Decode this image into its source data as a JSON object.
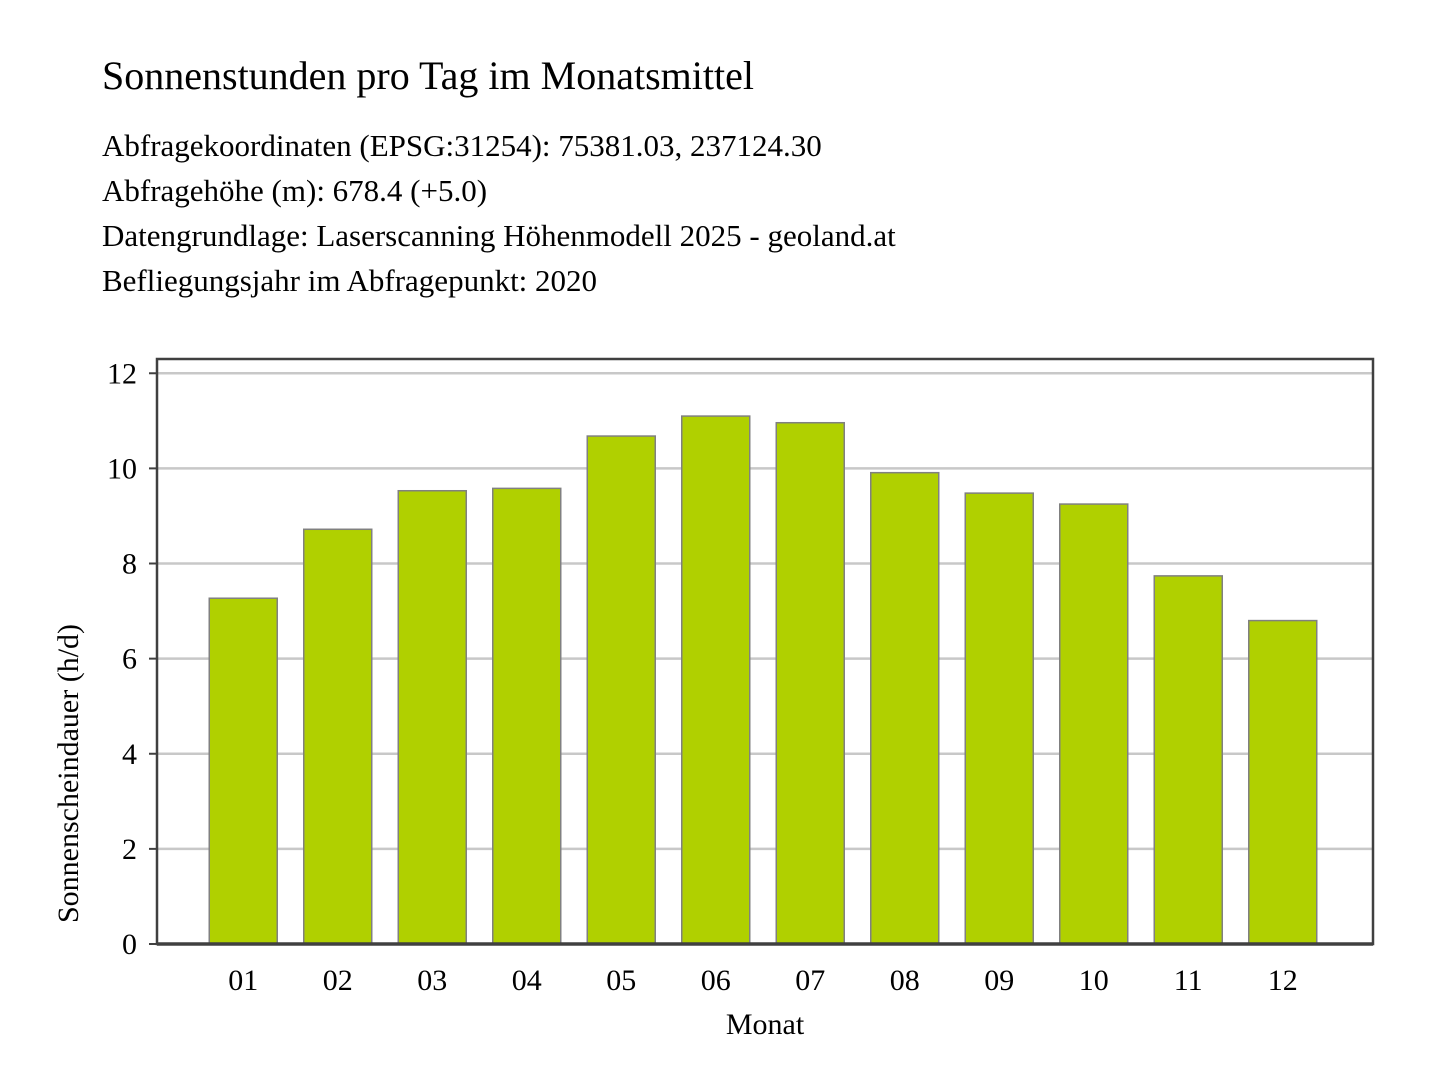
{
  "header": {
    "title": "Sonnenstunden pro Tag im Monatsmittel",
    "info_lines": [
      "Abfragekoordinaten (EPSG:31254): 75381.03, 237124.30",
      "Abfragehöhe (m): 678.4 (+5.0)",
      "Datengrundlage: Laserscanning Höhenmodell 2025 - geoland.at",
      "Befliegungsjahr im Abfragepunkt: 2020"
    ]
  },
  "chart_data": {
    "type": "bar",
    "title": "Sonnenstunden pro Tag im Monatsmittel",
    "xlabel": "Monat",
    "ylabel": "Sonnenscheindauer (h/d)",
    "categories": [
      "01",
      "02",
      "03",
      "04",
      "05",
      "06",
      "07",
      "08",
      "09",
      "10",
      "11",
      "12"
    ],
    "values": [
      7.27,
      8.72,
      9.53,
      9.58,
      10.68,
      11.1,
      10.96,
      9.91,
      9.48,
      9.25,
      7.74,
      6.8
    ],
    "ylim": [
      0,
      12.3
    ],
    "yticks": [
      0,
      2,
      4,
      6,
      8,
      10,
      12
    ],
    "grid": true,
    "legend": "none",
    "colors": {
      "bar_fill": "#b0d000",
      "bar_stroke": "#808080",
      "grid": "#c8c8c8",
      "frame": "#404040"
    }
  }
}
